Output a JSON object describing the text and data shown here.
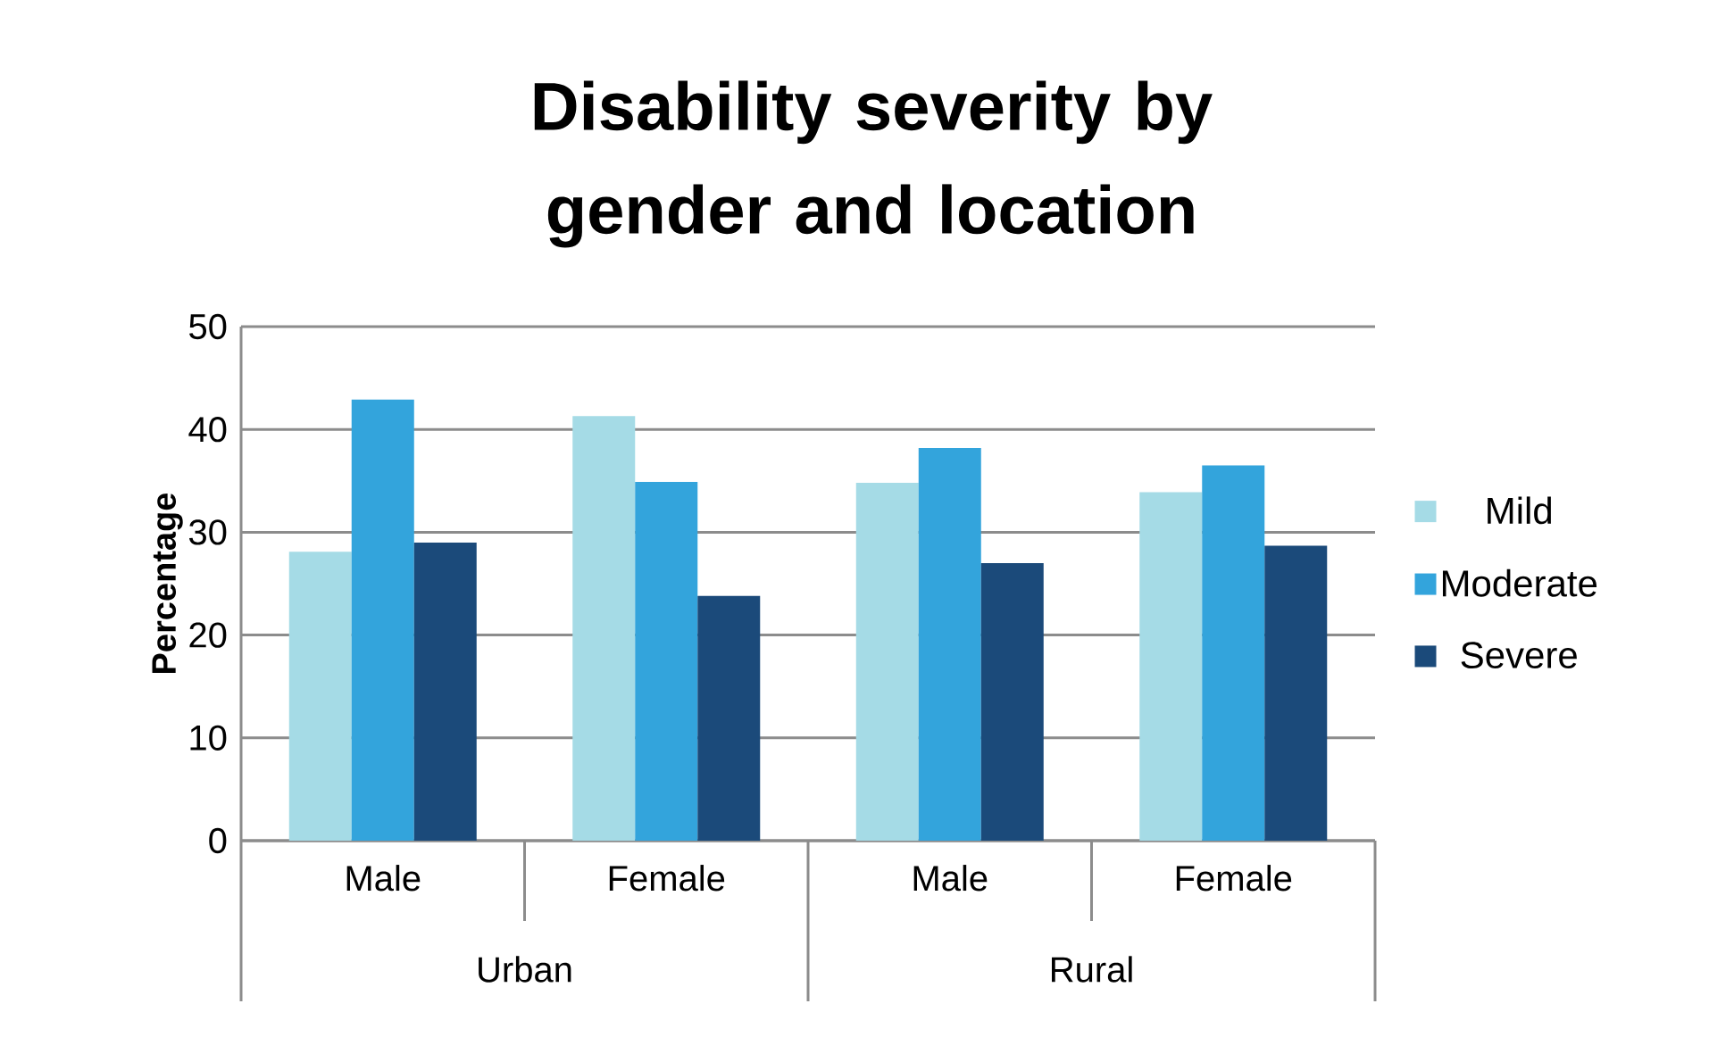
{
  "chart_data": {
    "type": "bar",
    "title": "Disability severity by gender and location",
    "ylabel": "Percentage",
    "categories": [
      "Male",
      "Female",
      "Male",
      "Female"
    ],
    "annotations": [
      "Urban",
      "Rural"
    ],
    "series": [
      {
        "name": "Mild",
        "color": "#a5dbe6",
        "values": [
          28.1,
          41.3,
          34.8,
          33.9
        ]
      },
      {
        "name": "Moderate",
        "color": "#33a4dc",
        "values": [
          42.9,
          34.9,
          38.2,
          36.5
        ]
      },
      {
        "name": "Severe",
        "color": "#1b4a7a",
        "values": [
          29.0,
          23.8,
          27.0,
          28.7
        ]
      }
    ],
    "ylim": [
      0,
      50
    ],
    "yticks": [
      0,
      10,
      20,
      30,
      40,
      50
    ],
    "grid": "y",
    "legend": "right"
  }
}
